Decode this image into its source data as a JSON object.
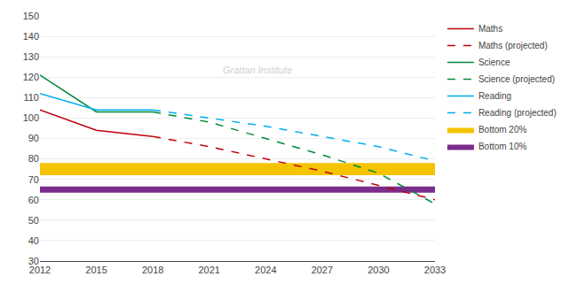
{
  "chart_data": {
    "type": "line",
    "x": [
      2012,
      2015,
      2018,
      2021,
      2024,
      2027,
      2030,
      2033
    ],
    "series": [
      {
        "name": "Maths",
        "color": "#C0000C",
        "line_style": "solid",
        "values": [
          104,
          94,
          91,
          null,
          null,
          null,
          null,
          null
        ]
      },
      {
        "name": "Maths (projected)",
        "color": "#C0000C",
        "line_style": "dashed",
        "values": [
          null,
          null,
          91,
          86,
          80,
          74,
          67,
          60
        ]
      },
      {
        "name": "Science",
        "color": "#00883A",
        "line_style": "solid",
        "values": [
          121,
          103,
          103,
          null,
          null,
          null,
          null,
          null
        ]
      },
      {
        "name": "Science (projected)",
        "color": "#00883A",
        "line_style": "dashed",
        "values": [
          null,
          null,
          103,
          98,
          90,
          82,
          73,
          58
        ]
      },
      {
        "name": "Reading",
        "color": "#00AEEF",
        "line_style": "solid",
        "values": [
          112,
          104,
          104,
          null,
          null,
          null,
          null,
          null
        ]
      },
      {
        "name": "Reading (projected)",
        "color": "#00AEEF",
        "line_style": "dashed",
        "values": [
          null,
          null,
          104,
          100,
          96,
          91,
          86,
          79
        ]
      }
    ],
    "bands": [
      {
        "name": "Bottom 20%",
        "color": "#F5C400",
        "from": 72,
        "to": 78
      },
      {
        "name": "Bottom 10%",
        "color": "#7B2D8B",
        "from": 63.5,
        "to": 66.5
      }
    ],
    "annotations": [
      "Grattan Institute"
    ],
    "xlim": [
      2012,
      2033
    ],
    "xticks": [
      2012,
      2015,
      2018,
      2021,
      2024,
      2027,
      2030,
      2033
    ],
    "ylim": [
      30,
      150
    ],
    "yticks": [
      30,
      40,
      50,
      60,
      70,
      80,
      90,
      100,
      110,
      120,
      130,
      140,
      150
    ],
    "grid": "y",
    "legend": "right"
  }
}
